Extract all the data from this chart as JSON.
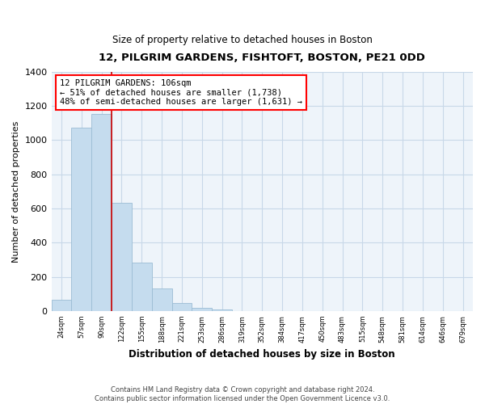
{
  "title": "12, PILGRIM GARDENS, FISHTOFT, BOSTON, PE21 0DD",
  "subtitle": "Size of property relative to detached houses in Boston",
  "xlabel": "Distribution of detached houses by size in Boston",
  "ylabel": "Number of detached properties",
  "bar_values": [
    65,
    1075,
    1155,
    635,
    285,
    130,
    48,
    20,
    10,
    0,
    0,
    0,
    0,
    0,
    0,
    0,
    0,
    0,
    0,
    0,
    0
  ],
  "bar_labels": [
    "24sqm",
    "57sqm",
    "90sqm",
    "122sqm",
    "155sqm",
    "188sqm",
    "221sqm",
    "253sqm",
    "286sqm",
    "319sqm",
    "352sqm",
    "384sqm",
    "417sqm",
    "450sqm",
    "483sqm",
    "515sqm",
    "548sqm",
    "581sqm",
    "614sqm",
    "646sqm",
    "679sqm"
  ],
  "bar_color": "#c5dcee",
  "bar_edge_color": "#9bbdd4",
  "property_line_x": 2.5,
  "annotation_text": "12 PILGRIM GARDENS: 106sqm\n← 51% of detached houses are smaller (1,738)\n48% of semi-detached houses are larger (1,631) →",
  "annotation_box_color": "white",
  "annotation_box_edge_color": "red",
  "vline_color": "#cc0000",
  "grid_color": "#c8d8e8",
  "bg_color": "#eef4fa",
  "ylim": [
    0,
    1400
  ],
  "yticks": [
    0,
    200,
    400,
    600,
    800,
    1000,
    1200,
    1400
  ],
  "footnote": "Contains HM Land Registry data © Crown copyright and database right 2024.\nContains public sector information licensed under the Open Government Licence v3.0.",
  "bar_width": 1.0,
  "figsize": [
    6.0,
    5.0
  ],
  "dpi": 100
}
